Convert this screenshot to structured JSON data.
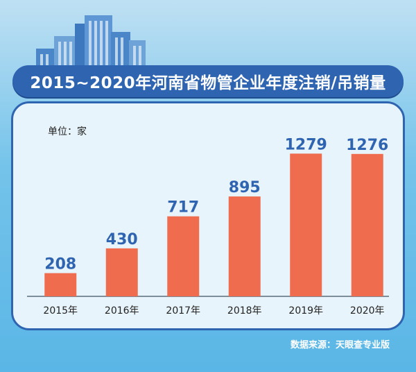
{
  "title": "2015~2020年河南省物管企业年度注销/吊销量",
  "unit": "单位：家",
  "source": "数据来源：天眼查专业版",
  "colors": {
    "bar": "#ef6c4e",
    "value_label": "#2f64b1",
    "banner": "#2f64b1"
  },
  "chart_data": {
    "type": "bar",
    "title": "2015~2020年河南省物管企业年度注销/吊销量",
    "xlabel": "",
    "ylabel": "",
    "categories": [
      "2015年",
      "2016年",
      "2017年",
      "2018年",
      "2019年",
      "2020年"
    ],
    "values": [
      208,
      430,
      717,
      895,
      1279,
      1276
    ],
    "ylim": [
      0,
      1480
    ],
    "grid": false,
    "legend": "none"
  }
}
